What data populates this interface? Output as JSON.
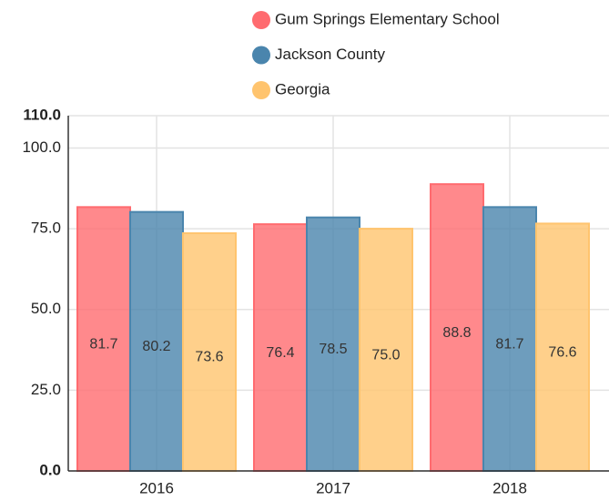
{
  "chart_data": {
    "type": "bar",
    "categories": [
      "2016",
      "2017",
      "2018"
    ],
    "series": [
      {
        "name": "Gum Springs Elementary School",
        "color": "#ff6b6f",
        "values": [
          81.7,
          76.4,
          88.8
        ],
        "value_labels": [
          "81.7",
          "76.4",
          "88.8"
        ]
      },
      {
        "name": "Jackson County",
        "color": "#4a85ad",
        "values": [
          80.2,
          78.5,
          81.7
        ],
        "value_labels": [
          "80.2",
          "78.5",
          "81.7"
        ]
      },
      {
        "name": "Georgia",
        "color": "#ffc46e",
        "values": [
          73.6,
          75.0,
          76.6
        ],
        "value_labels": [
          "73.6",
          "75.0",
          "76.6"
        ]
      }
    ],
    "ylim": [
      0,
      110
    ],
    "yticks": [
      {
        "value": 0,
        "label": "0.0"
      },
      {
        "value": 25,
        "label": "25.0"
      },
      {
        "value": 50,
        "label": "50.0"
      },
      {
        "value": 75,
        "label": "75.0"
      },
      {
        "value": 100,
        "label": "100.0"
      },
      {
        "value": 110,
        "label": "110.0"
      }
    ],
    "grid": true
  }
}
